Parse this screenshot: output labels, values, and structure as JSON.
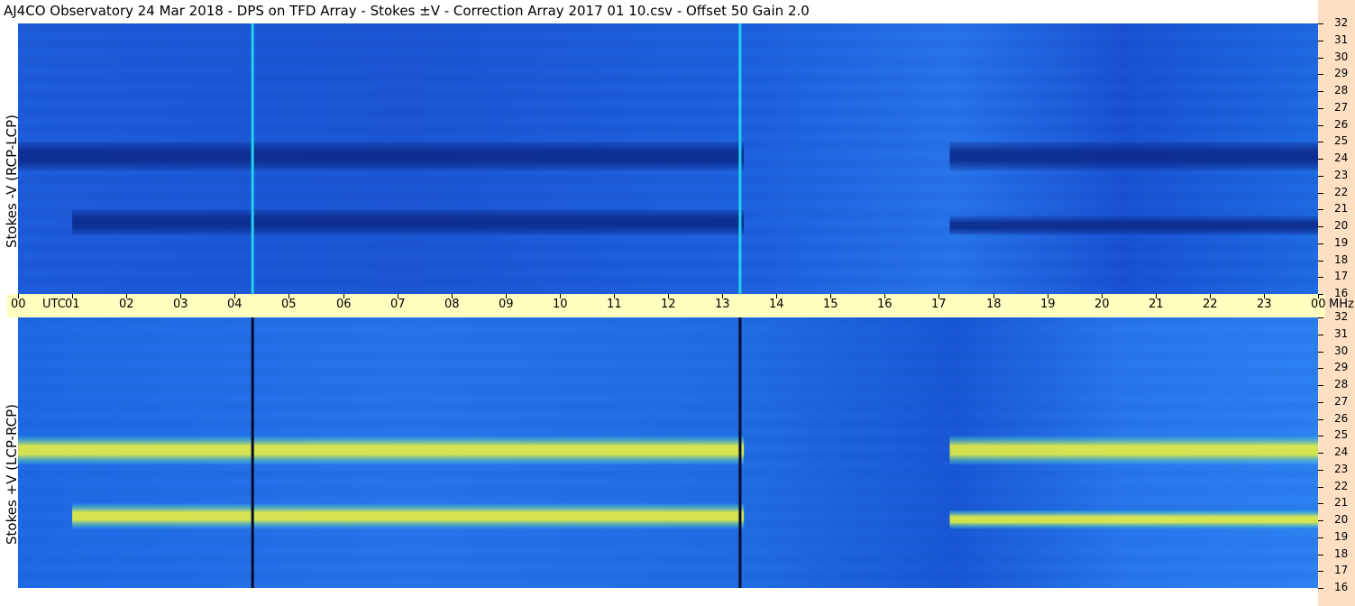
{
  "title": "AJ4CO Observatory  24 Mar 2018  -  DPS on TFD Array  -  Stokes ±V  -  Correction Array 2017 01 10.csv  -  Offset 50  Gain 2.0",
  "colors": {
    "deep": "#040c28",
    "dark": "#0c2a8c",
    "mid": "#1448d8",
    "light": "#2f86f6",
    "cyan": "#22d0f0",
    "yellow": "#e8f040",
    "peach": "#fde0c4",
    "timebar": "#ffffc0"
  },
  "chart_data": [
    {
      "type": "heatmap",
      "ylabel": "Stokes -V (RCP-LCP)",
      "x_unit": "UTC",
      "y_unit": "MHz",
      "xlim": [
        0,
        24
      ],
      "ylim": [
        16,
        32
      ],
      "x_ticks": [
        "00",
        "01",
        "02",
        "03",
        "04",
        "05",
        "06",
        "07",
        "08",
        "09",
        "10",
        "11",
        "12",
        "13",
        "14",
        "15",
        "16",
        "17",
        "18",
        "19",
        "20",
        "21",
        "22",
        "23",
        "00"
      ],
      "y_ticks": [
        "16",
        "17",
        "18",
        "19",
        "20",
        "21",
        "22",
        "23",
        "24",
        "25",
        "26",
        "27",
        "28",
        "29",
        "30",
        "31",
        "32"
      ],
      "bands": [
        {
          "from_hour": 0.0,
          "to_hour": 13.4,
          "from_mhz": 23.3,
          "to_mhz": 25.0,
          "level": "dark"
        },
        {
          "from_hour": 1.0,
          "to_hour": 13.4,
          "from_mhz": 19.5,
          "to_mhz": 21.0,
          "level": "dark"
        },
        {
          "from_hour": 17.2,
          "to_hour": 24.0,
          "from_mhz": 23.3,
          "to_mhz": 25.0,
          "level": "dark"
        },
        {
          "from_hour": 17.2,
          "to_hour": 24.0,
          "from_mhz": 19.5,
          "to_mhz": 20.6,
          "level": "dark"
        }
      ],
      "vertical_lines": [
        {
          "hour": 4.33,
          "level": "cyan"
        },
        {
          "hour": 13.33,
          "level": "cyan"
        }
      ]
    },
    {
      "type": "heatmap",
      "ylabel": "Stokes +V (LCP-RCP)",
      "x_unit": "UTC",
      "y_unit": "MHz",
      "xlim": [
        0,
        24
      ],
      "ylim": [
        16,
        32
      ],
      "x_ticks": [
        "00",
        "01",
        "02",
        "03",
        "04",
        "05",
        "06",
        "07",
        "08",
        "09",
        "10",
        "11",
        "12",
        "13",
        "14",
        "15",
        "16",
        "17",
        "18",
        "19",
        "20",
        "21",
        "22",
        "23",
        "00"
      ],
      "y_ticks": [
        "16",
        "17",
        "18",
        "19",
        "20",
        "21",
        "22",
        "23",
        "24",
        "25",
        "26",
        "27",
        "28",
        "29",
        "30",
        "31",
        "32"
      ],
      "bands": [
        {
          "from_hour": 0.0,
          "to_hour": 13.4,
          "from_mhz": 23.3,
          "to_mhz": 25.0,
          "level": "yellow"
        },
        {
          "from_hour": 1.0,
          "to_hour": 13.4,
          "from_mhz": 19.5,
          "to_mhz": 21.0,
          "level": "yellow"
        },
        {
          "from_hour": 17.2,
          "to_hour": 24.0,
          "from_mhz": 23.3,
          "to_mhz": 25.0,
          "level": "yellow"
        },
        {
          "from_hour": 17.2,
          "to_hour": 24.0,
          "from_mhz": 19.5,
          "to_mhz": 20.6,
          "level": "yellow"
        }
      ],
      "vertical_lines": [
        {
          "hour": 4.33,
          "level": "deep"
        },
        {
          "hour": 13.33,
          "level": "deep"
        }
      ]
    }
  ]
}
